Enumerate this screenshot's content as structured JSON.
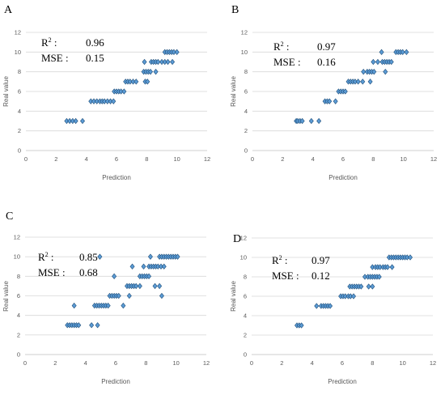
{
  "chart_data": [
    {
      "type": "scatter",
      "panel": "A",
      "xlabel": "Prediction",
      "ylabel": "Real value",
      "xlim": [
        0,
        12
      ],
      "ylim": [
        0,
        12
      ],
      "xticks": [
        0,
        2,
        4,
        6,
        8,
        10,
        12
      ],
      "yticks": [
        0,
        2,
        4,
        6,
        8,
        10,
        12
      ],
      "grid": "horizontal",
      "stats": {
        "r2_label": "R",
        "r2_sup": "2",
        "r2_sep": " :",
        "r2_value": "0.96",
        "mse_label": "MSE :",
        "mse_value": "0.15"
      },
      "points": [
        [
          2.7,
          3
        ],
        [
          2.9,
          3
        ],
        [
          3.1,
          3
        ],
        [
          3.3,
          3
        ],
        [
          3.75,
          3
        ],
        [
          4.3,
          5
        ],
        [
          4.5,
          5
        ],
        [
          4.7,
          5
        ],
        [
          4.9,
          5
        ],
        [
          5.05,
          5
        ],
        [
          5.2,
          5
        ],
        [
          5.4,
          5
        ],
        [
          5.6,
          5
        ],
        [
          5.8,
          5
        ],
        [
          5.85,
          6
        ],
        [
          6.0,
          6
        ],
        [
          6.15,
          6
        ],
        [
          6.3,
          6
        ],
        [
          6.5,
          6
        ],
        [
          6.6,
          7
        ],
        [
          6.75,
          7
        ],
        [
          6.9,
          7
        ],
        [
          7.1,
          7
        ],
        [
          7.3,
          7
        ],
        [
          7.9,
          7
        ],
        [
          8.05,
          7
        ],
        [
          7.8,
          8
        ],
        [
          7.95,
          8
        ],
        [
          8.1,
          8
        ],
        [
          8.25,
          8
        ],
        [
          8.6,
          8
        ],
        [
          7.85,
          9
        ],
        [
          8.3,
          9
        ],
        [
          8.45,
          9
        ],
        [
          8.6,
          9
        ],
        [
          8.75,
          9
        ],
        [
          9.0,
          9
        ],
        [
          9.2,
          9
        ],
        [
          9.4,
          9
        ],
        [
          9.7,
          9
        ],
        [
          9.2,
          10
        ],
        [
          9.35,
          10
        ],
        [
          9.5,
          10
        ],
        [
          9.65,
          10
        ],
        [
          9.8,
          10
        ],
        [
          10.0,
          10
        ]
      ]
    },
    {
      "type": "scatter",
      "panel": "B",
      "xlabel": "Prediction",
      "ylabel": "Real value",
      "xlim": [
        0,
        12
      ],
      "ylim": [
        0,
        12
      ],
      "xticks": [
        0,
        2,
        4,
        6,
        8,
        10,
        12
      ],
      "yticks": [
        0,
        2,
        4,
        6,
        8,
        10,
        12
      ],
      "grid": "horizontal",
      "stats": {
        "r2_label": "R",
        "r2_sup": "2",
        "r2_sep": " :",
        "r2_value": "0.97",
        "mse_label": "MSE :",
        "mse_value": "0.16"
      },
      "points": [
        [
          2.9,
          3
        ],
        [
          3.0,
          3
        ],
        [
          3.15,
          3
        ],
        [
          3.3,
          3
        ],
        [
          3.9,
          3
        ],
        [
          4.4,
          3
        ],
        [
          4.8,
          5
        ],
        [
          4.95,
          5
        ],
        [
          5.1,
          5
        ],
        [
          5.5,
          5
        ],
        [
          5.7,
          6
        ],
        [
          5.85,
          6
        ],
        [
          6.0,
          6
        ],
        [
          6.15,
          6
        ],
        [
          6.35,
          7
        ],
        [
          6.5,
          7
        ],
        [
          6.65,
          7
        ],
        [
          6.8,
          7
        ],
        [
          7.0,
          7
        ],
        [
          7.3,
          7
        ],
        [
          7.8,
          7
        ],
        [
          7.35,
          8
        ],
        [
          7.6,
          8
        ],
        [
          7.75,
          8
        ],
        [
          7.9,
          8
        ],
        [
          8.05,
          8
        ],
        [
          8.8,
          8
        ],
        [
          8.0,
          9
        ],
        [
          8.3,
          9
        ],
        [
          8.6,
          9
        ],
        [
          8.75,
          9
        ],
        [
          8.9,
          9
        ],
        [
          9.05,
          9
        ],
        [
          9.2,
          9
        ],
        [
          8.55,
          10
        ],
        [
          9.5,
          10
        ],
        [
          9.65,
          10
        ],
        [
          9.8,
          10
        ],
        [
          9.95,
          10
        ],
        [
          10.2,
          10
        ]
      ]
    },
    {
      "type": "scatter",
      "panel": "C",
      "xlabel": "Prediction",
      "ylabel": "Real value",
      "xlim": [
        0,
        12
      ],
      "ylim": [
        0,
        12
      ],
      "xticks": [
        0,
        2,
        4,
        6,
        8,
        10,
        12
      ],
      "yticks": [
        0,
        2,
        4,
        6,
        8,
        10,
        12
      ],
      "grid": "horizontal",
      "stats": {
        "r2_label": "R",
        "r2_sup": "2",
        "r2_sep": " :",
        "r2_value": "0.85",
        "mse_label": "MSE :",
        "mse_value": "0.68"
      },
      "points": [
        [
          2.8,
          3
        ],
        [
          2.95,
          3
        ],
        [
          3.1,
          3
        ],
        [
          3.25,
          3
        ],
        [
          3.4,
          3
        ],
        [
          3.55,
          3
        ],
        [
          4.4,
          3
        ],
        [
          4.8,
          3
        ],
        [
          3.25,
          5
        ],
        [
          4.6,
          5
        ],
        [
          4.75,
          5
        ],
        [
          4.9,
          5
        ],
        [
          5.05,
          5
        ],
        [
          5.2,
          5
        ],
        [
          5.35,
          5
        ],
        [
          5.5,
          5
        ],
        [
          6.5,
          5
        ],
        [
          5.6,
          6
        ],
        [
          5.75,
          6
        ],
        [
          5.9,
          6
        ],
        [
          6.05,
          6
        ],
        [
          6.2,
          6
        ],
        [
          6.9,
          6
        ],
        [
          9.05,
          6
        ],
        [
          6.75,
          7
        ],
        [
          6.9,
          7
        ],
        [
          7.05,
          7
        ],
        [
          7.2,
          7
        ],
        [
          7.35,
          7
        ],
        [
          7.6,
          7
        ],
        [
          8.6,
          7
        ],
        [
          8.9,
          7
        ],
        [
          5.9,
          8
        ],
        [
          7.6,
          8
        ],
        [
          7.75,
          8
        ],
        [
          7.9,
          8
        ],
        [
          8.05,
          8
        ],
        [
          8.2,
          8
        ],
        [
          7.1,
          9
        ],
        [
          7.85,
          9
        ],
        [
          8.2,
          9
        ],
        [
          8.35,
          9
        ],
        [
          8.5,
          9
        ],
        [
          8.65,
          9
        ],
        [
          8.8,
          9
        ],
        [
          9.0,
          9
        ],
        [
          9.2,
          9
        ],
        [
          4.95,
          10
        ],
        [
          8.3,
          10
        ],
        [
          8.9,
          10
        ],
        [
          9.05,
          10
        ],
        [
          9.2,
          10
        ],
        [
          9.35,
          10
        ],
        [
          9.5,
          10
        ],
        [
          9.65,
          10
        ],
        [
          9.8,
          10
        ],
        [
          9.95,
          10
        ],
        [
          10.1,
          10
        ]
      ]
    },
    {
      "type": "scatter",
      "panel": "D",
      "xlabel": "Prediction",
      "ylabel": "Real value",
      "xlim": [
        0,
        12
      ],
      "ylim": [
        0,
        12
      ],
      "xticks": [
        0,
        2,
        4,
        6,
        8,
        10,
        12
      ],
      "yticks": [
        0,
        2,
        4,
        6,
        8,
        10,
        12
      ],
      "grid": "horizontal",
      "stats": {
        "r2_label": "R",
        "r2_sup": "2",
        "r2_sep": " :",
        "r2_value": "0.97",
        "mse_label": "MSE :",
        "mse_value": "0.12"
      },
      "points": [
        [
          3.0,
          3
        ],
        [
          3.15,
          3
        ],
        [
          3.3,
          3
        ],
        [
          4.3,
          5
        ],
        [
          4.6,
          5
        ],
        [
          4.75,
          5
        ],
        [
          4.9,
          5
        ],
        [
          5.05,
          5
        ],
        [
          5.2,
          5
        ],
        [
          5.9,
          6
        ],
        [
          6.05,
          6
        ],
        [
          6.2,
          6
        ],
        [
          6.4,
          6
        ],
        [
          6.55,
          6
        ],
        [
          6.75,
          6
        ],
        [
          6.5,
          7
        ],
        [
          6.65,
          7
        ],
        [
          6.8,
          7
        ],
        [
          6.95,
          7
        ],
        [
          7.1,
          7
        ],
        [
          7.25,
          7
        ],
        [
          7.75,
          7
        ],
        [
          8.0,
          7
        ],
        [
          7.5,
          8
        ],
        [
          7.7,
          8
        ],
        [
          7.85,
          8
        ],
        [
          8.0,
          8
        ],
        [
          8.15,
          8
        ],
        [
          8.3,
          8
        ],
        [
          8.45,
          8
        ],
        [
          8.0,
          9
        ],
        [
          8.2,
          9
        ],
        [
          8.35,
          9
        ],
        [
          8.5,
          9
        ],
        [
          8.7,
          9
        ],
        [
          8.85,
          9
        ],
        [
          9.0,
          9
        ],
        [
          9.3,
          9
        ],
        [
          9.1,
          10
        ],
        [
          9.25,
          10
        ],
        [
          9.4,
          10
        ],
        [
          9.55,
          10
        ],
        [
          9.7,
          10
        ],
        [
          9.85,
          10
        ],
        [
          10.0,
          10
        ],
        [
          10.15,
          10
        ],
        [
          10.3,
          10
        ],
        [
          10.5,
          10
        ]
      ]
    }
  ]
}
